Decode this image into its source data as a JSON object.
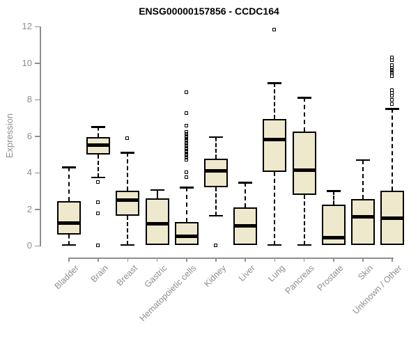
{
  "chart_data": {
    "type": "boxplot",
    "title": "ENSG00000157856 - CCDC164",
    "ylabel": "Expression",
    "xlabel": "",
    "ylim": [
      0,
      12
    ],
    "yticks": [
      0,
      2,
      4,
      6,
      8,
      10,
      12
    ],
    "grid": false,
    "legend": "none",
    "categories": [
      "Bladder",
      "Brain",
      "Breast",
      "Gastric",
      "Hematopoietic cells",
      "Kidney",
      "Liver",
      "Lung",
      "Pancreas",
      "Prostate",
      "Skin",
      "Unknown / Other"
    ],
    "series": [
      {
        "name": "Bladder",
        "whisker_low": 0.05,
        "q1": 0.6,
        "median": 1.25,
        "q3": 2.45,
        "whisker_high": 4.3,
        "outliers": []
      },
      {
        "name": "Brain",
        "whisker_low": 3.75,
        "q1": 5.0,
        "median": 5.5,
        "q3": 5.95,
        "whisker_high": 6.5,
        "outliers": [
          3.45,
          2.35,
          1.75,
          0.0
        ]
      },
      {
        "name": "Breast",
        "whisker_low": 0.05,
        "q1": 1.65,
        "median": 2.5,
        "q3": 3.0,
        "whisker_high": 5.1,
        "outliers": [
          5.85
        ]
      },
      {
        "name": "Gastric",
        "whisker_low": 0.02,
        "q1": 0.05,
        "median": 1.2,
        "q3": 2.6,
        "whisker_high": 3.05,
        "outliers": []
      },
      {
        "name": "Hematopoietic cells",
        "whisker_low": 0.02,
        "q1": 0.05,
        "median": 0.5,
        "q3": 1.3,
        "whisker_high": 3.2,
        "outliers": [
          3.75,
          4.0,
          4.7,
          4.8,
          4.9,
          5.0,
          5.1,
          5.2,
          5.3,
          5.4,
          5.45,
          5.5,
          5.55,
          5.6,
          5.7,
          5.8,
          5.9,
          6.0,
          6.1,
          6.2,
          6.55,
          7.25,
          8.4
        ]
      },
      {
        "name": "Kidney",
        "whisker_low": 1.65,
        "q1": 3.2,
        "median": 4.1,
        "q3": 4.75,
        "whisker_high": 5.95,
        "outliers": [
          0.0
        ]
      },
      {
        "name": "Liver",
        "whisker_low": 0.02,
        "q1": 0.05,
        "median": 1.1,
        "q3": 2.1,
        "whisker_high": 3.45,
        "outliers": []
      },
      {
        "name": "Lung",
        "whisker_low": 0.05,
        "q1": 4.05,
        "median": 5.8,
        "q3": 6.95,
        "whisker_high": 8.9,
        "outliers": [
          11.8
        ]
      },
      {
        "name": "Pancreas",
        "whisker_low": 0.05,
        "q1": 2.8,
        "median": 4.15,
        "q3": 6.25,
        "whisker_high": 8.1,
        "outliers": []
      },
      {
        "name": "Prostate",
        "whisker_low": 0.02,
        "q1": 0.05,
        "median": 0.45,
        "q3": 2.25,
        "whisker_high": 3.0,
        "outliers": []
      },
      {
        "name": "Skin",
        "whisker_low": 0.02,
        "q1": 0.05,
        "median": 1.6,
        "q3": 2.55,
        "whisker_high": 4.7,
        "outliers": []
      },
      {
        "name": "Unknown / Other",
        "whisker_low": 0.02,
        "q1": 0.05,
        "median": 1.5,
        "q3": 3.0,
        "whisker_high": 7.5,
        "outliers": [
          7.75,
          7.95,
          8.2,
          8.35,
          8.5,
          9.25,
          9.4,
          9.5,
          9.6,
          9.7,
          9.85,
          10.15,
          10.3
        ]
      }
    ],
    "style": {
      "box_fill": "#EEE8CD",
      "box_line": "#000000",
      "median_color": "#000000",
      "axis_color": "#8E8E8E",
      "title_color": "#000000",
      "background": "#FFFFFF"
    }
  }
}
